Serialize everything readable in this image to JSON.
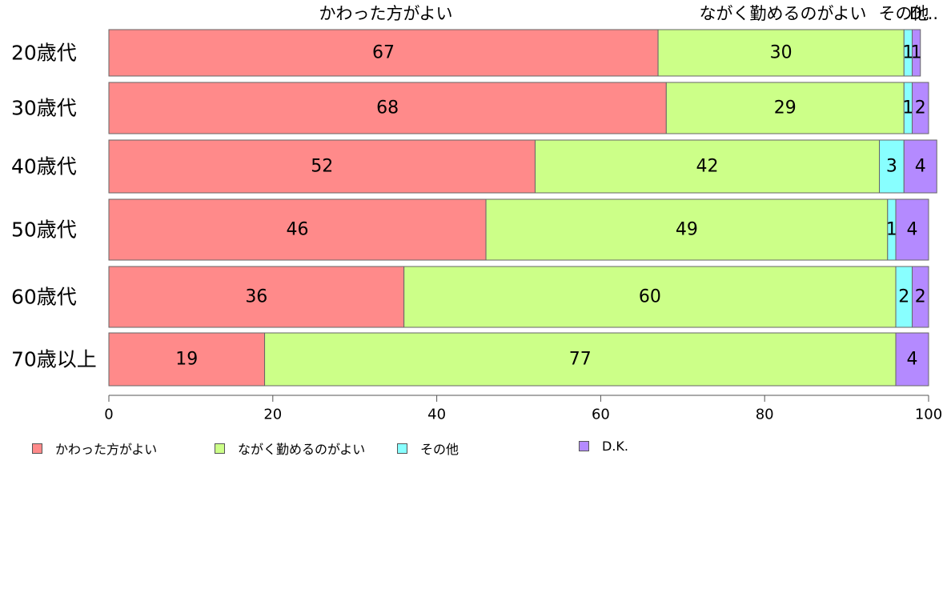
{
  "chart_data": {
    "type": "bar",
    "orientation": "horizontal",
    "stacked": true,
    "categories": [
      "20歳代",
      "30歳代",
      "40歳代",
      "50歳代",
      "60歳代",
      "70歳以上"
    ],
    "series": [
      {
        "name": "かわった方がよい",
        "color": "#FF8A8A",
        "values": [
          67,
          68,
          52,
          46,
          36,
          19
        ]
      },
      {
        "name": "ながく勤めるのがよい",
        "color": "#CCFF88",
        "values": [
          30,
          29,
          42,
          49,
          60,
          77
        ]
      },
      {
        "name": "その他",
        "color": "#88FFFF",
        "values": [
          1,
          1,
          3,
          1,
          2,
          0
        ]
      },
      {
        "name": "D.K.",
        "color": "#B48AFF",
        "values": [
          1,
          2,
          4,
          4,
          2,
          4
        ]
      }
    ],
    "data_labels": [
      [
        "67",
        "30",
        "1",
        "1"
      ],
      [
        "68",
        "29",
        "1",
        "2"
      ],
      [
        "52",
        "42",
        "3",
        "4"
      ],
      [
        "46",
        "49",
        "1",
        "4"
      ],
      [
        "36",
        "60",
        "2",
        "2"
      ],
      [
        "19",
        "77",
        "",
        "4"
      ]
    ],
    "top_labels": [
      "かわった方がよい",
      "ながく勤めるのがよい",
      "その他",
      "D..."
    ],
    "xlim": [
      0,
      100
    ],
    "xticks": [
      "0",
      "20",
      "40",
      "60",
      "80",
      "100"
    ],
    "grid": false,
    "legend_position": "bottom-left"
  }
}
